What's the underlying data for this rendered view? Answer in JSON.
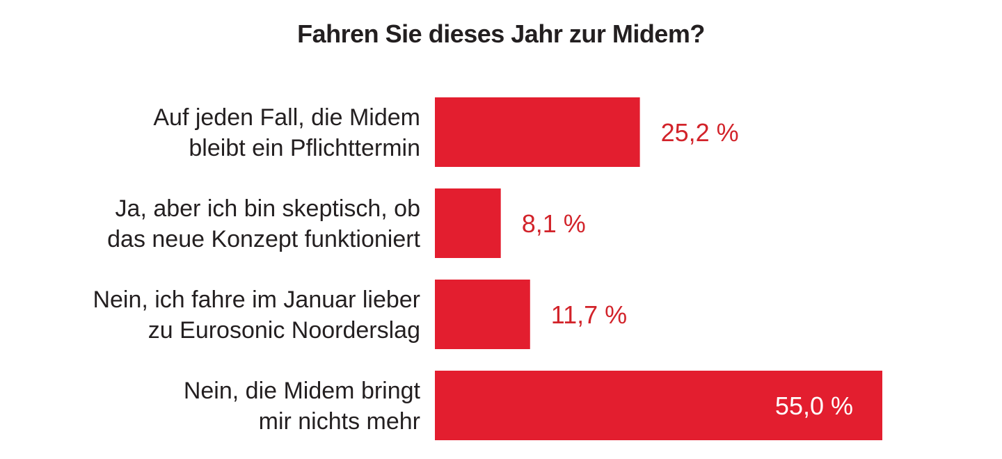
{
  "chart_data": {
    "type": "bar",
    "orientation": "horizontal",
    "title": "Fahren Sie dieses Jahr zur Midem?",
    "categories": [
      [
        "Auf jeden Fall, die Midem",
        "bleibt ein Pflichttermin"
      ],
      [
        "Ja, aber ich bin skeptisch, ob",
        "das neue Konzept funktioniert"
      ],
      [
        "Nein, ich fahre im Januar lieber",
        "zu Eurosonic Noorderslag"
      ],
      [
        "Nein, die Midem bringt",
        "mir nichts mehr"
      ]
    ],
    "values": [
      25.2,
      8.1,
      11.7,
      55.0
    ],
    "value_labels": [
      "25,2 %",
      "8,1 %",
      "11,7 %",
      "55,0 %"
    ],
    "unit": "%",
    "xlim": [
      0,
      55
    ],
    "grid": false,
    "bar_color": "#e31e2f",
    "label_color": "#d2232a",
    "inside_label_color": "#ffffff"
  }
}
